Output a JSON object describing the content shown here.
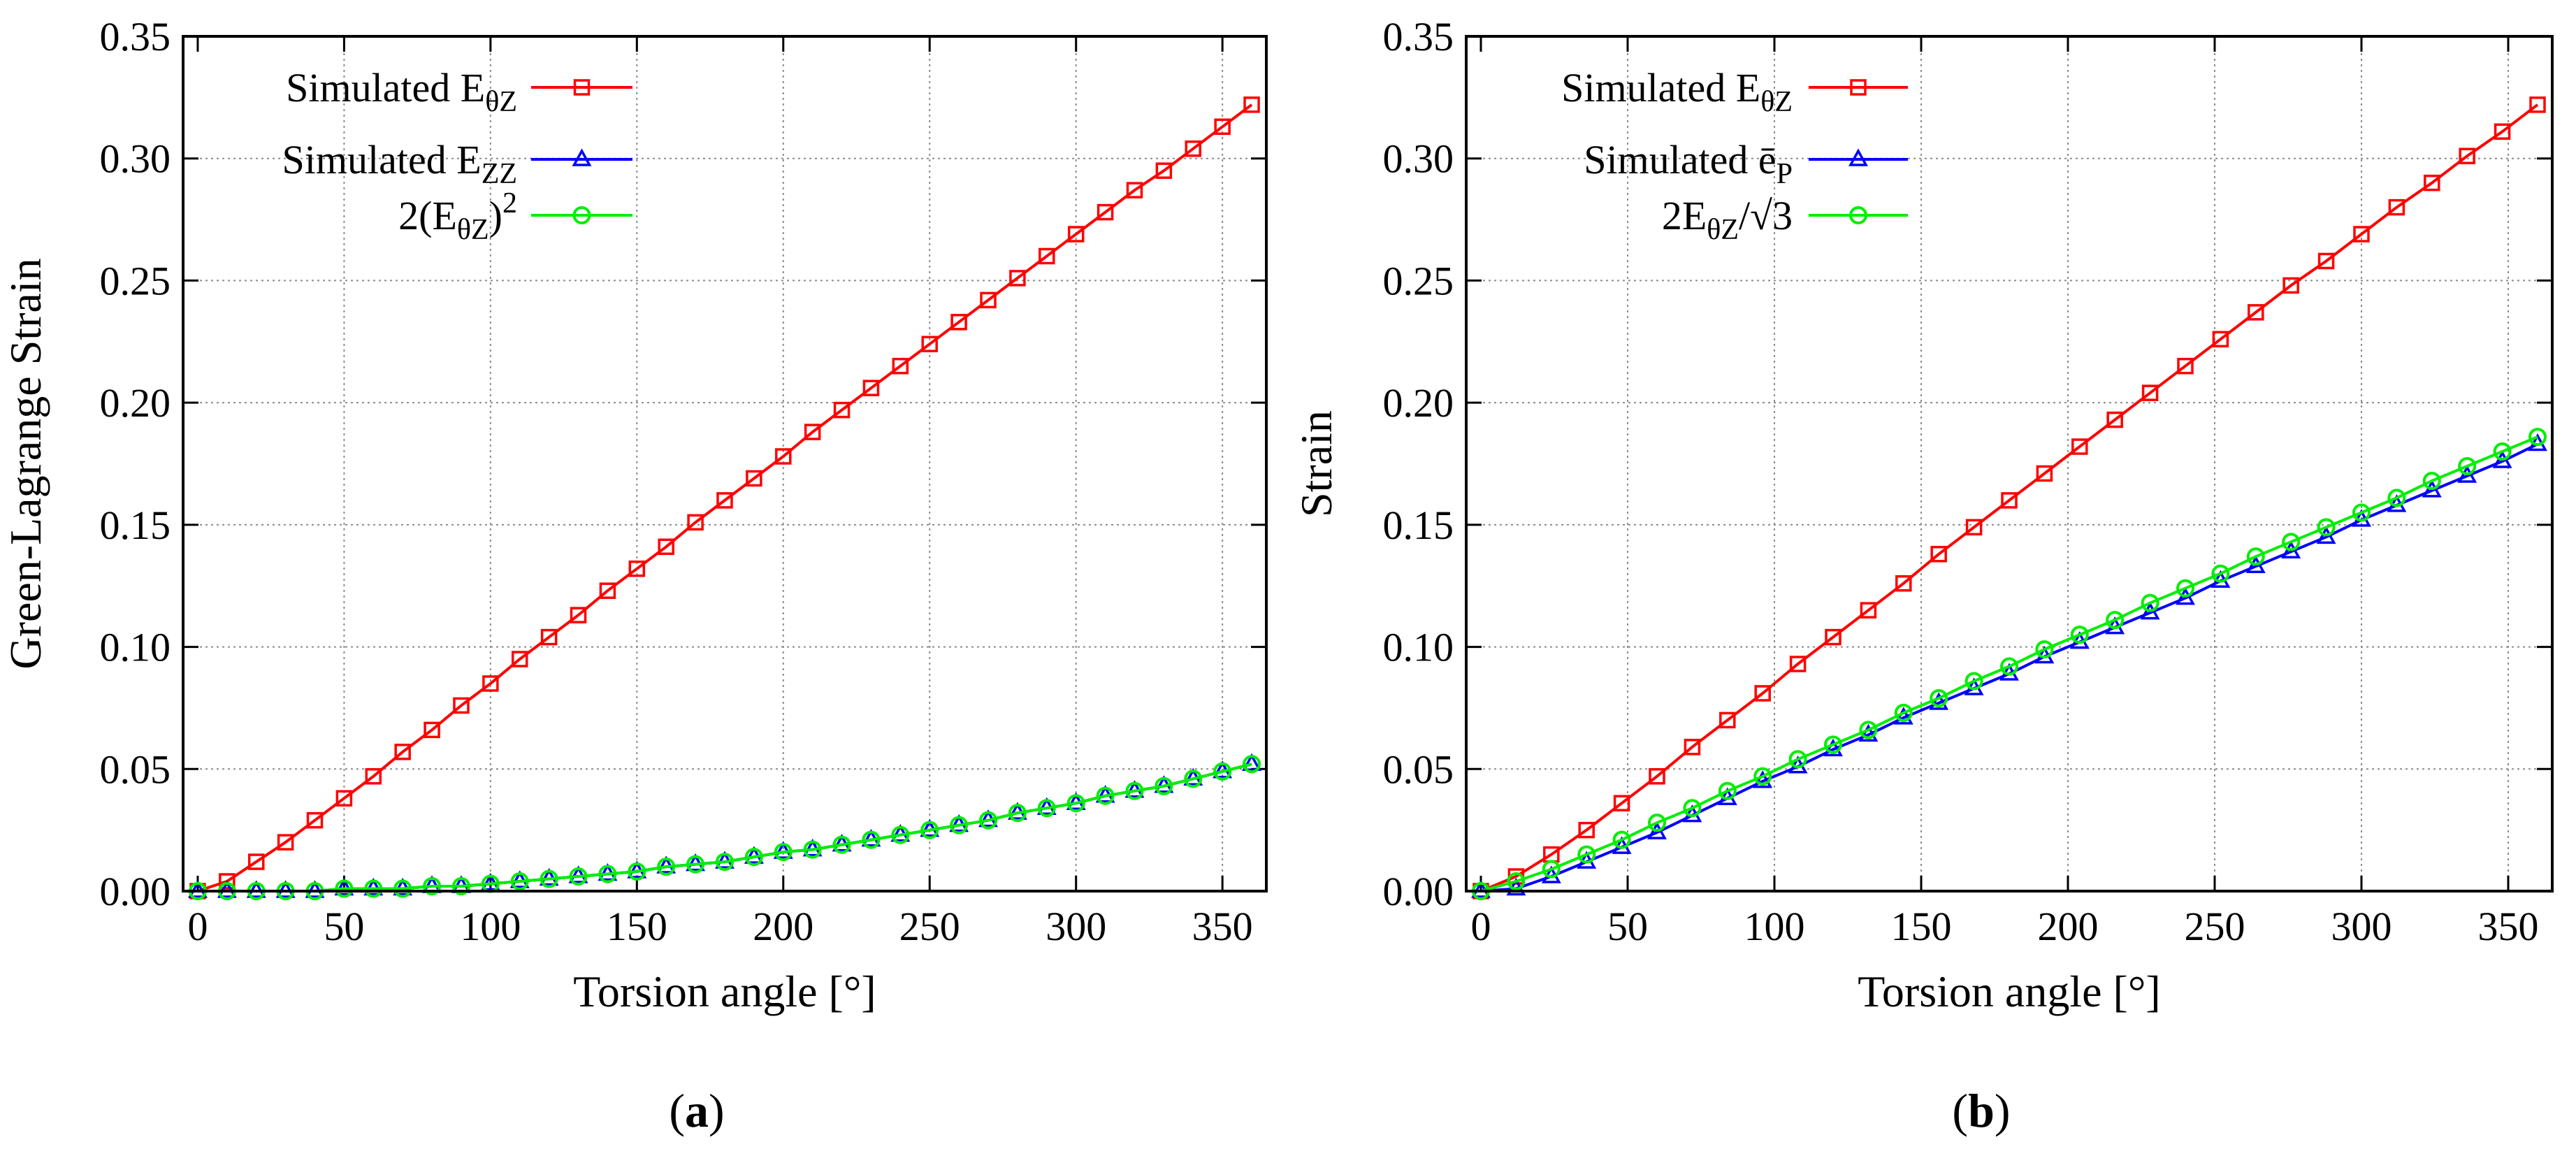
{
  "chart_data": [
    {
      "type": "line",
      "panel_caption": "(a)",
      "xlabel": "Torsion angle [°]",
      "ylabel": "Green-Lagrange Strain",
      "xlim": [
        -5,
        365
      ],
      "ylim": [
        0,
        0.35
      ],
      "xticks": [
        0,
        50,
        100,
        150,
        200,
        250,
        300,
        350
      ],
      "xtick_labels": [
        "0",
        "50",
        "100",
        "150",
        "200",
        "250",
        "300",
        "350"
      ],
      "yticks": [
        0,
        0.05,
        0.1,
        0.15,
        0.2,
        0.25,
        0.3,
        0.35
      ],
      "ytick_labels": [
        "0.00",
        "0.05",
        "0.10",
        "0.15",
        "0.20",
        "0.25",
        "0.30",
        "0.35"
      ],
      "grid": true,
      "legend_position": "top-left",
      "x": [
        0,
        10,
        20,
        30,
        40,
        50,
        60,
        70,
        80,
        90,
        100,
        110,
        120,
        130,
        140,
        150,
        160,
        170,
        180,
        190,
        200,
        210,
        220,
        230,
        240,
        250,
        260,
        270,
        280,
        290,
        300,
        310,
        320,
        330,
        340,
        350,
        360
      ],
      "series": [
        {
          "name": "Simulated E_θZ",
          "legend_main": "Simulated E",
          "legend_sub": "θZ",
          "legend_sup": "",
          "legend_tail": "",
          "color": "#ff0000",
          "marker": "square",
          "values": [
            0.0,
            0.004,
            0.012,
            0.02,
            0.029,
            0.038,
            0.047,
            0.057,
            0.066,
            0.076,
            0.085,
            0.095,
            0.104,
            0.113,
            0.123,
            0.132,
            0.141,
            0.151,
            0.16,
            0.169,
            0.178,
            0.188,
            0.197,
            0.206,
            0.215,
            0.224,
            0.233,
            0.242,
            0.251,
            0.26,
            0.269,
            0.278,
            0.287,
            0.295,
            0.304,
            0.313,
            0.322
          ]
        },
        {
          "name": "Simulated E_ZZ",
          "legend_main": "Simulated E",
          "legend_sub": "ZZ",
          "legend_sup": "",
          "legend_tail": "",
          "color": "#0000ff",
          "marker": "triangle",
          "values": [
            0.0,
            0.0,
            0.0,
            0.0,
            0.0,
            0.001,
            0.001,
            0.001,
            0.002,
            0.002,
            0.003,
            0.004,
            0.005,
            0.006,
            0.007,
            0.008,
            0.01,
            0.011,
            0.012,
            0.014,
            0.016,
            0.017,
            0.019,
            0.021,
            0.023,
            0.025,
            0.027,
            0.029,
            0.032,
            0.034,
            0.036,
            0.039,
            0.041,
            0.043,
            0.046,
            0.049,
            0.052
          ]
        },
        {
          "name": "2(E_θZ)^2",
          "legend_main": "2(E",
          "legend_sub": "θZ",
          "legend_sup": "2",
          "legend_tail": ")",
          "color": "#00ee00",
          "marker": "circle",
          "values": [
            0.0,
            0.0,
            0.0,
            0.0,
            0.0,
            0.001,
            0.001,
            0.001,
            0.002,
            0.002,
            0.003,
            0.004,
            0.005,
            0.006,
            0.007,
            0.008,
            0.01,
            0.011,
            0.012,
            0.014,
            0.016,
            0.017,
            0.019,
            0.021,
            0.023,
            0.025,
            0.027,
            0.029,
            0.032,
            0.034,
            0.036,
            0.039,
            0.041,
            0.043,
            0.046,
            0.049,
            0.052
          ]
        }
      ]
    },
    {
      "type": "line",
      "panel_caption": "(b)",
      "xlabel": "Torsion angle [°]",
      "ylabel": "Strain",
      "xlim": [
        -5,
        365
      ],
      "ylim": [
        0,
        0.35
      ],
      "xticks": [
        0,
        50,
        100,
        150,
        200,
        250,
        300,
        350
      ],
      "xtick_labels": [
        "0",
        "50",
        "100",
        "150",
        "200",
        "250",
        "300",
        "350"
      ],
      "yticks": [
        0,
        0.05,
        0.1,
        0.15,
        0.2,
        0.25,
        0.3,
        0.35
      ],
      "ytick_labels": [
        "0.00",
        "0.05",
        "0.10",
        "0.15",
        "0.20",
        "0.25",
        "0.30",
        "0.35"
      ],
      "grid": true,
      "legend_position": "top-left",
      "x": [
        0,
        12,
        24,
        36,
        48,
        60,
        72,
        84,
        96,
        108,
        120,
        132,
        144,
        156,
        168,
        180,
        192,
        204,
        216,
        228,
        240,
        252,
        264,
        276,
        288,
        300,
        312,
        324,
        336,
        348,
        360
      ],
      "series": [
        {
          "name": "Simulated E_θZ",
          "legend_main": "Simulated E",
          "legend_sub": "θZ",
          "legend_sup": "",
          "legend_tail": "",
          "color": "#ff0000",
          "marker": "square",
          "values": [
            0.0,
            0.006,
            0.015,
            0.025,
            0.036,
            0.047,
            0.059,
            0.07,
            0.081,
            0.093,
            0.104,
            0.115,
            0.126,
            0.138,
            0.149,
            0.16,
            0.171,
            0.182,
            0.193,
            0.204,
            0.215,
            0.226,
            0.237,
            0.248,
            0.258,
            0.269,
            0.28,
            0.29,
            0.301,
            0.311,
            0.322
          ]
        },
        {
          "name": "Simulated ē_P",
          "legend_main": "Simulated ē",
          "legend_sub": "P",
          "legend_sup": "",
          "legend_tail": "",
          "color": "#0000ff",
          "marker": "triangle",
          "values": [
            0.0,
            0.001,
            0.006,
            0.012,
            0.018,
            0.024,
            0.031,
            0.038,
            0.045,
            0.051,
            0.058,
            0.064,
            0.071,
            0.077,
            0.083,
            0.089,
            0.096,
            0.102,
            0.108,
            0.114,
            0.12,
            0.127,
            0.133,
            0.139,
            0.145,
            0.152,
            0.158,
            0.164,
            0.17,
            0.176,
            0.183
          ]
        },
        {
          "name": "2E_θZ/√3",
          "legend_main": "2E",
          "legend_sub": "θZ",
          "legend_sup": "",
          "legend_tail": "/√3",
          "color": "#00ee00",
          "marker": "circle",
          "values": [
            0.0,
            0.004,
            0.009,
            0.015,
            0.021,
            0.028,
            0.034,
            0.041,
            0.047,
            0.054,
            0.06,
            0.066,
            0.073,
            0.079,
            0.086,
            0.092,
            0.099,
            0.105,
            0.111,
            0.118,
            0.124,
            0.13,
            0.137,
            0.143,
            0.149,
            0.155,
            0.161,
            0.168,
            0.174,
            0.18,
            0.186
          ]
        }
      ]
    }
  ]
}
